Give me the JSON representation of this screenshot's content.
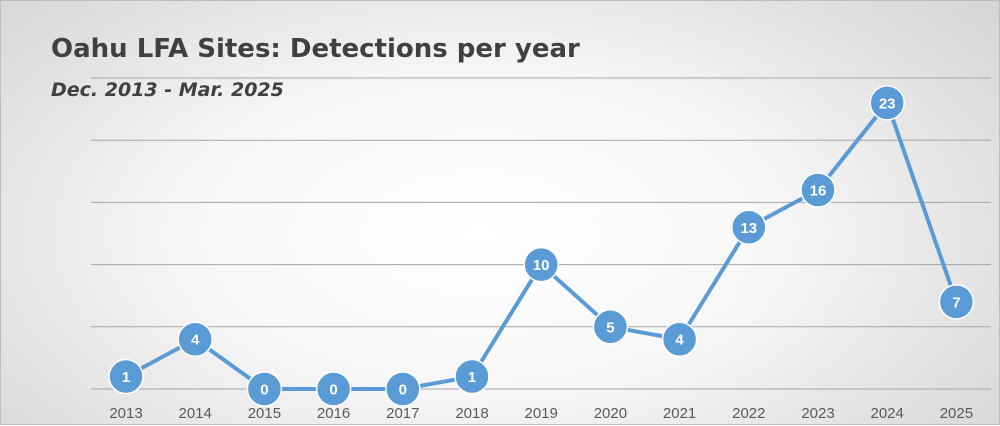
{
  "chart_data": {
    "type": "line",
    "title": "Oahu LFA Sites: Detections per year",
    "subtitle": "Dec. 2013 - Mar. 2025",
    "xlabel": "",
    "ylabel": "",
    "categories": [
      "2013",
      "2014",
      "2015",
      "2016",
      "2017",
      "2018",
      "2019",
      "2020",
      "2021",
      "2022",
      "2023",
      "2024",
      "2025"
    ],
    "series": [
      {
        "values": [
          1,
          4,
          0,
          0,
          0,
          1,
          10,
          5,
          4,
          13,
          16,
          23,
          7
        ]
      }
    ],
    "ylim": [
      0,
      25
    ],
    "y_gridlines": [
      0,
      5,
      10,
      15,
      20,
      25
    ],
    "grid": true,
    "legend": "none",
    "data_labels": true,
    "colors": {
      "line": "#5b9bd5",
      "marker": "#5b9bd5",
      "marker_border": "#ffffff",
      "data_label": "#ffffff",
      "gridline": "#a6a6a6",
      "axis_text": "#595959",
      "title_text": "#404040"
    }
  }
}
